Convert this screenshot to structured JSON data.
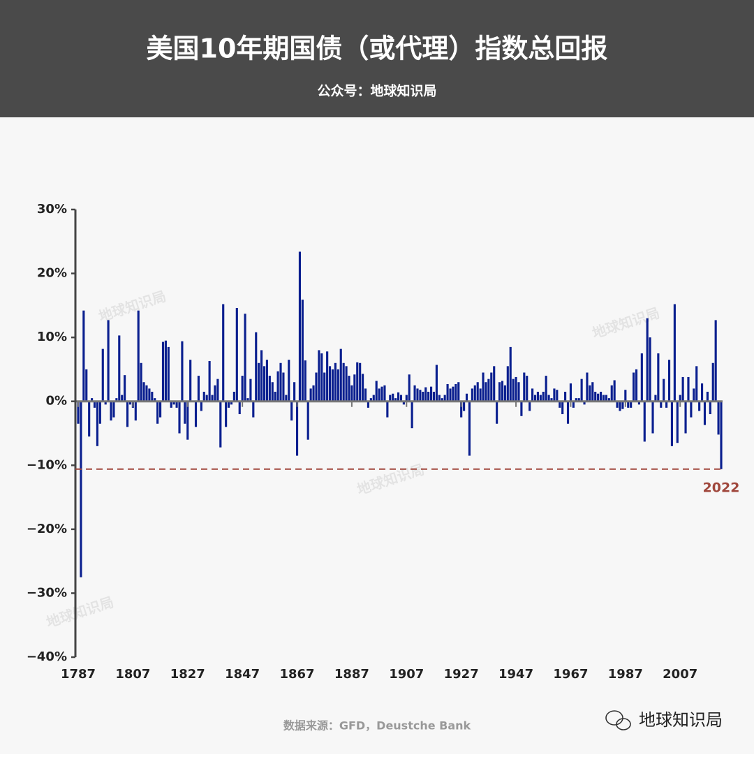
{
  "header": {
    "title": "美国10年期国债（或代理）指数总回报",
    "subtitle": "公众号：地球知识局"
  },
  "chart_data": {
    "type": "bar",
    "x": [
      1787,
      1788,
      1789,
      1790,
      1791,
      1792,
      1793,
      1794,
      1795,
      1796,
      1797,
      1798,
      1799,
      1800,
      1801,
      1802,
      1803,
      1804,
      1805,
      1806,
      1807,
      1808,
      1809,
      1810,
      1811,
      1812,
      1813,
      1814,
      1815,
      1816,
      1817,
      1818,
      1819,
      1820,
      1821,
      1822,
      1823,
      1824,
      1825,
      1826,
      1827,
      1828,
      1829,
      1830,
      1831,
      1832,
      1833,
      1834,
      1835,
      1836,
      1837,
      1838,
      1839,
      1840,
      1841,
      1842,
      1843,
      1844,
      1845,
      1846,
      1847,
      1848,
      1849,
      1850,
      1851,
      1852,
      1853,
      1854,
      1855,
      1856,
      1857,
      1858,
      1859,
      1860,
      1861,
      1862,
      1863,
      1864,
      1865,
      1866,
      1867,
      1868,
      1869,
      1870,
      1871,
      1872,
      1873,
      1874,
      1875,
      1876,
      1877,
      1878,
      1879,
      1880,
      1881,
      1882,
      1883,
      1884,
      1885,
      1886,
      1887,
      1888,
      1889,
      1890,
      1891,
      1892,
      1893,
      1894,
      1895,
      1896,
      1897,
      1898,
      1899,
      1900,
      1901,
      1902,
      1903,
      1904,
      1905,
      1906,
      1907,
      1908,
      1909,
      1910,
      1911,
      1912,
      1913,
      1914,
      1915,
      1916,
      1917,
      1918,
      1919,
      1920,
      1921,
      1922,
      1923,
      1924,
      1925,
      1926,
      1927,
      1928,
      1929,
      1930,
      1931,
      1932,
      1933,
      1934,
      1935,
      1936,
      1937,
      1938,
      1939,
      1940,
      1941,
      1942,
      1943,
      1944,
      1945,
      1946,
      1947,
      1948,
      1949,
      1950,
      1951,
      1952,
      1953,
      1954,
      1955,
      1956,
      1957,
      1958,
      1959,
      1960,
      1961,
      1962,
      1963,
      1964,
      1965,
      1966,
      1967,
      1968,
      1969,
      1970,
      1971,
      1972,
      1973,
      1974,
      1975,
      1976,
      1977,
      1978,
      1979,
      1980,
      1981,
      1982,
      1983,
      1984,
      1985,
      1986,
      1987,
      1988,
      1989,
      1990,
      1991,
      1992,
      1993,
      1994,
      1995,
      1996,
      1997,
      1998,
      1999,
      2000,
      2001,
      2002,
      2003,
      2004,
      2005,
      2006,
      2007,
      2008,
      2009,
      2010,
      2011,
      2012,
      2013,
      2014,
      2015,
      2016,
      2017,
      2018,
      2019,
      2020,
      2021,
      2022
    ],
    "series": [
      {
        "color": "#0a1f8f",
        "values": [
          -3.5,
          -27.5,
          14.2,
          5,
          -5.5,
          0.5,
          -1,
          -7,
          -3.5,
          8.2,
          -0.5,
          12.7,
          -3,
          -2.5,
          0.5,
          10.3,
          1,
          4.1,
          -4,
          -0.5,
          -1,
          -3,
          14.2,
          6,
          3,
          2.5,
          2,
          1.5,
          0.5,
          -3.5,
          -2.5,
          9.3,
          9.5,
          8.5,
          -1,
          -0.5,
          -1,
          -5,
          9.4,
          -3.5,
          -6,
          6.5,
          0,
          -4,
          4,
          -1.5,
          1.5,
          1,
          6.3,
          1,
          2.5,
          3.5,
          -7.2,
          15.2,
          -4,
          -1,
          -0.5,
          1.5,
          14.6,
          -2,
          4,
          13.7,
          0.5,
          3.5,
          -2.5,
          10.8,
          6,
          8,
          5.5,
          6.5,
          4,
          3,
          1.5,
          4.7,
          6,
          4.5,
          1,
          6.5,
          -3,
          3,
          -8.5,
          23.4,
          15.9,
          6.4,
          -6,
          2,
          2.5,
          4.5,
          8,
          7.5,
          4.5,
          7.8,
          5.5,
          5,
          6,
          5,
          8.2,
          6,
          5.5,
          4,
          2.5,
          4.2,
          6.1,
          6,
          4.3,
          2,
          -1,
          0.5,
          1,
          3.2,
          2,
          2.3,
          2.5,
          -2.5,
          1,
          1.2,
          0.5,
          1.4,
          1,
          -0.5,
          1,
          4.2,
          -4.2,
          2.5,
          2,
          1.8,
          1.5,
          2.2,
          1.5,
          2.3,
          1.5,
          5.7,
          1,
          0.5,
          1,
          2.7,
          2,
          2.3,
          2.7,
          3,
          -2.5,
          -1.5,
          1.2,
          -8.5,
          2,
          2.5,
          3,
          2,
          4.5,
          3,
          3.5,
          4.5,
          5.5,
          -3.5,
          3,
          3.2,
          2.5,
          5.5,
          8.5,
          3.5,
          3.8,
          3,
          -2.3,
          4.5,
          4,
          -1.5,
          2,
          1,
          1.5,
          1,
          1.5,
          4,
          1,
          0.5,
          2,
          1.8,
          -1,
          -2,
          1.5,
          -3.5,
          2.8,
          -1,
          0.5,
          0.5,
          3.5,
          -0.5,
          4.5,
          2.5,
          3,
          1.5,
          1.2,
          1.5,
          1,
          1,
          0.5,
          2.5,
          3.3,
          -1,
          -1.5,
          -1.2,
          1.8,
          -1,
          -1,
          4.5,
          5,
          -0.5,
          7.5,
          -6.3,
          13,
          10,
          -5,
          1,
          7.5,
          -1,
          3.5,
          -1,
          6.5,
          -7,
          15.2,
          -6.5,
          1,
          3.8,
          -5,
          3.8,
          -2.5,
          2,
          5.5,
          -1.5,
          2.8,
          -3.7,
          1.5,
          -2,
          6,
          12.7,
          -5.2,
          -10.6
        ]
      }
    ],
    "xlim": [
      1787,
      2022
    ],
    "xticks": [
      1787,
      1807,
      1827,
      1847,
      1867,
      1887,
      1907,
      1927,
      1947,
      1967,
      1987,
      2007
    ],
    "ylim": [
      -40,
      30
    ],
    "yticks": [
      {
        "value": -40,
        "label": "−40%"
      },
      {
        "value": -30,
        "label": "−30%"
      },
      {
        "value": -20,
        "label": "−20%"
      },
      {
        "value": -10,
        "label": "−10%"
      },
      {
        "value": 0,
        "label": "0%"
      },
      {
        "value": 10,
        "label": "10%"
      },
      {
        "value": 20,
        "label": "20%"
      },
      {
        "value": 30,
        "label": "30%"
      }
    ],
    "reference_line": {
      "value": -10.6,
      "label": "2022",
      "color": "#a0473c"
    }
  },
  "source": "数据来源：GFD，Deustche Bank",
  "watermark": "地球知识局",
  "logo": "地球知识局"
}
